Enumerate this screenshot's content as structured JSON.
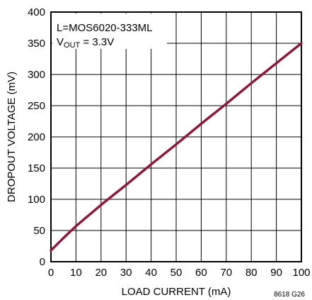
{
  "chart_data": {
    "type": "line",
    "title": "",
    "xlabel": "LOAD CURRENT (mA)",
    "ylabel": "DROPOUT VOLTAGE (mV)",
    "xlim": [
      0,
      100
    ],
    "ylim": [
      0,
      400
    ],
    "x_ticks": [
      0,
      10,
      20,
      30,
      40,
      50,
      60,
      70,
      80,
      90,
      100
    ],
    "y_ticks": [
      0,
      50,
      100,
      150,
      200,
      250,
      300,
      350,
      400
    ],
    "grid": true,
    "series": [
      {
        "color": "#8b1a3a",
        "x": [
          0,
          5,
          10,
          20,
          30,
          40,
          50,
          60,
          70,
          80,
          90,
          100
        ],
        "y": [
          18,
          38,
          57,
          91,
          123,
          156,
          188,
          221,
          253,
          286,
          318,
          350
        ]
      }
    ],
    "annotations": {
      "line1": "L=MOS6020-333ML",
      "line2_main": "V",
      "line2_sub": "OUT",
      "line2_rest": " = 3.3V"
    },
    "figure_id": "8618 G26"
  }
}
